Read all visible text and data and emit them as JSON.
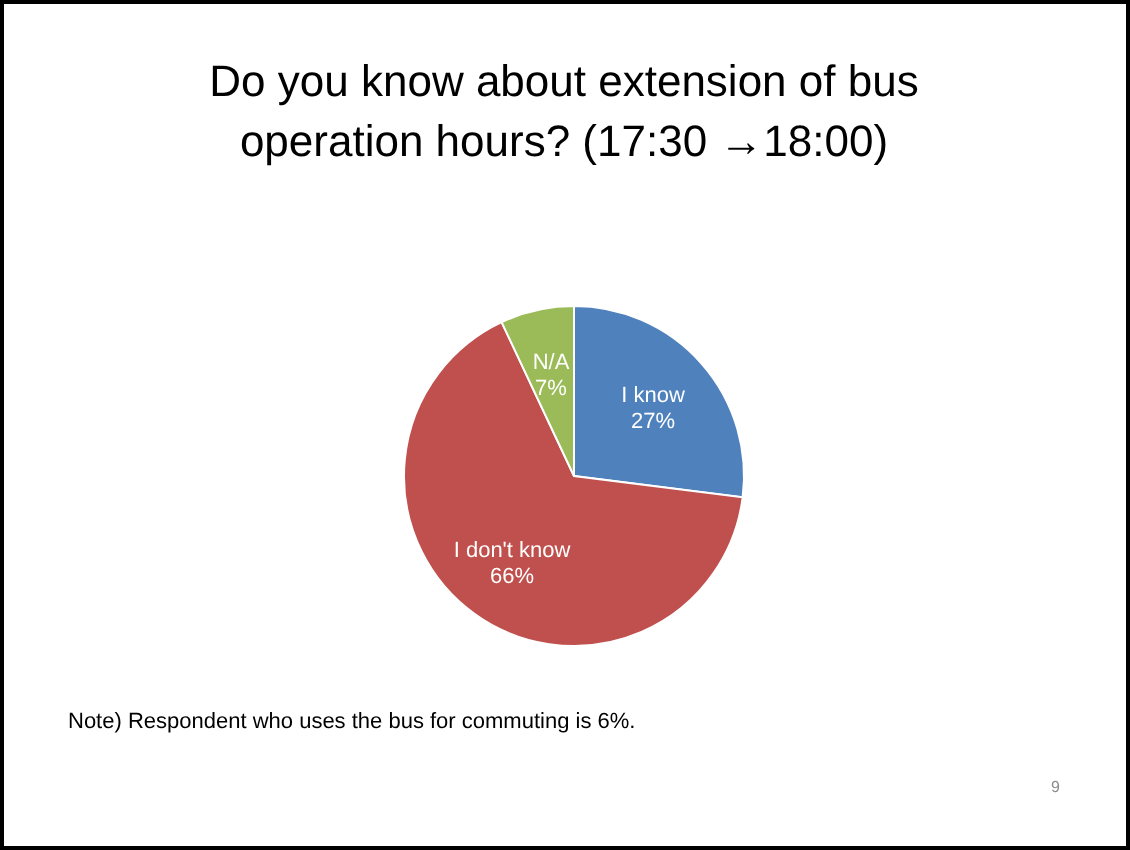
{
  "chart_data": {
    "type": "pie",
    "title": "Do you know about extension of bus operation hours? (17:30 →18:00)",
    "categories": [
      "I know",
      "I don't know",
      "N/A"
    ],
    "values": [
      27,
      66,
      7
    ],
    "colors": [
      "#4f81bd",
      "#c0504d",
      "#9bbb59"
    ],
    "value_labels": [
      "27%",
      "66%",
      "7%"
    ],
    "annotations": [
      "Note) Respondent who uses the bus for commuting is 6%.",
      "9"
    ]
  }
}
